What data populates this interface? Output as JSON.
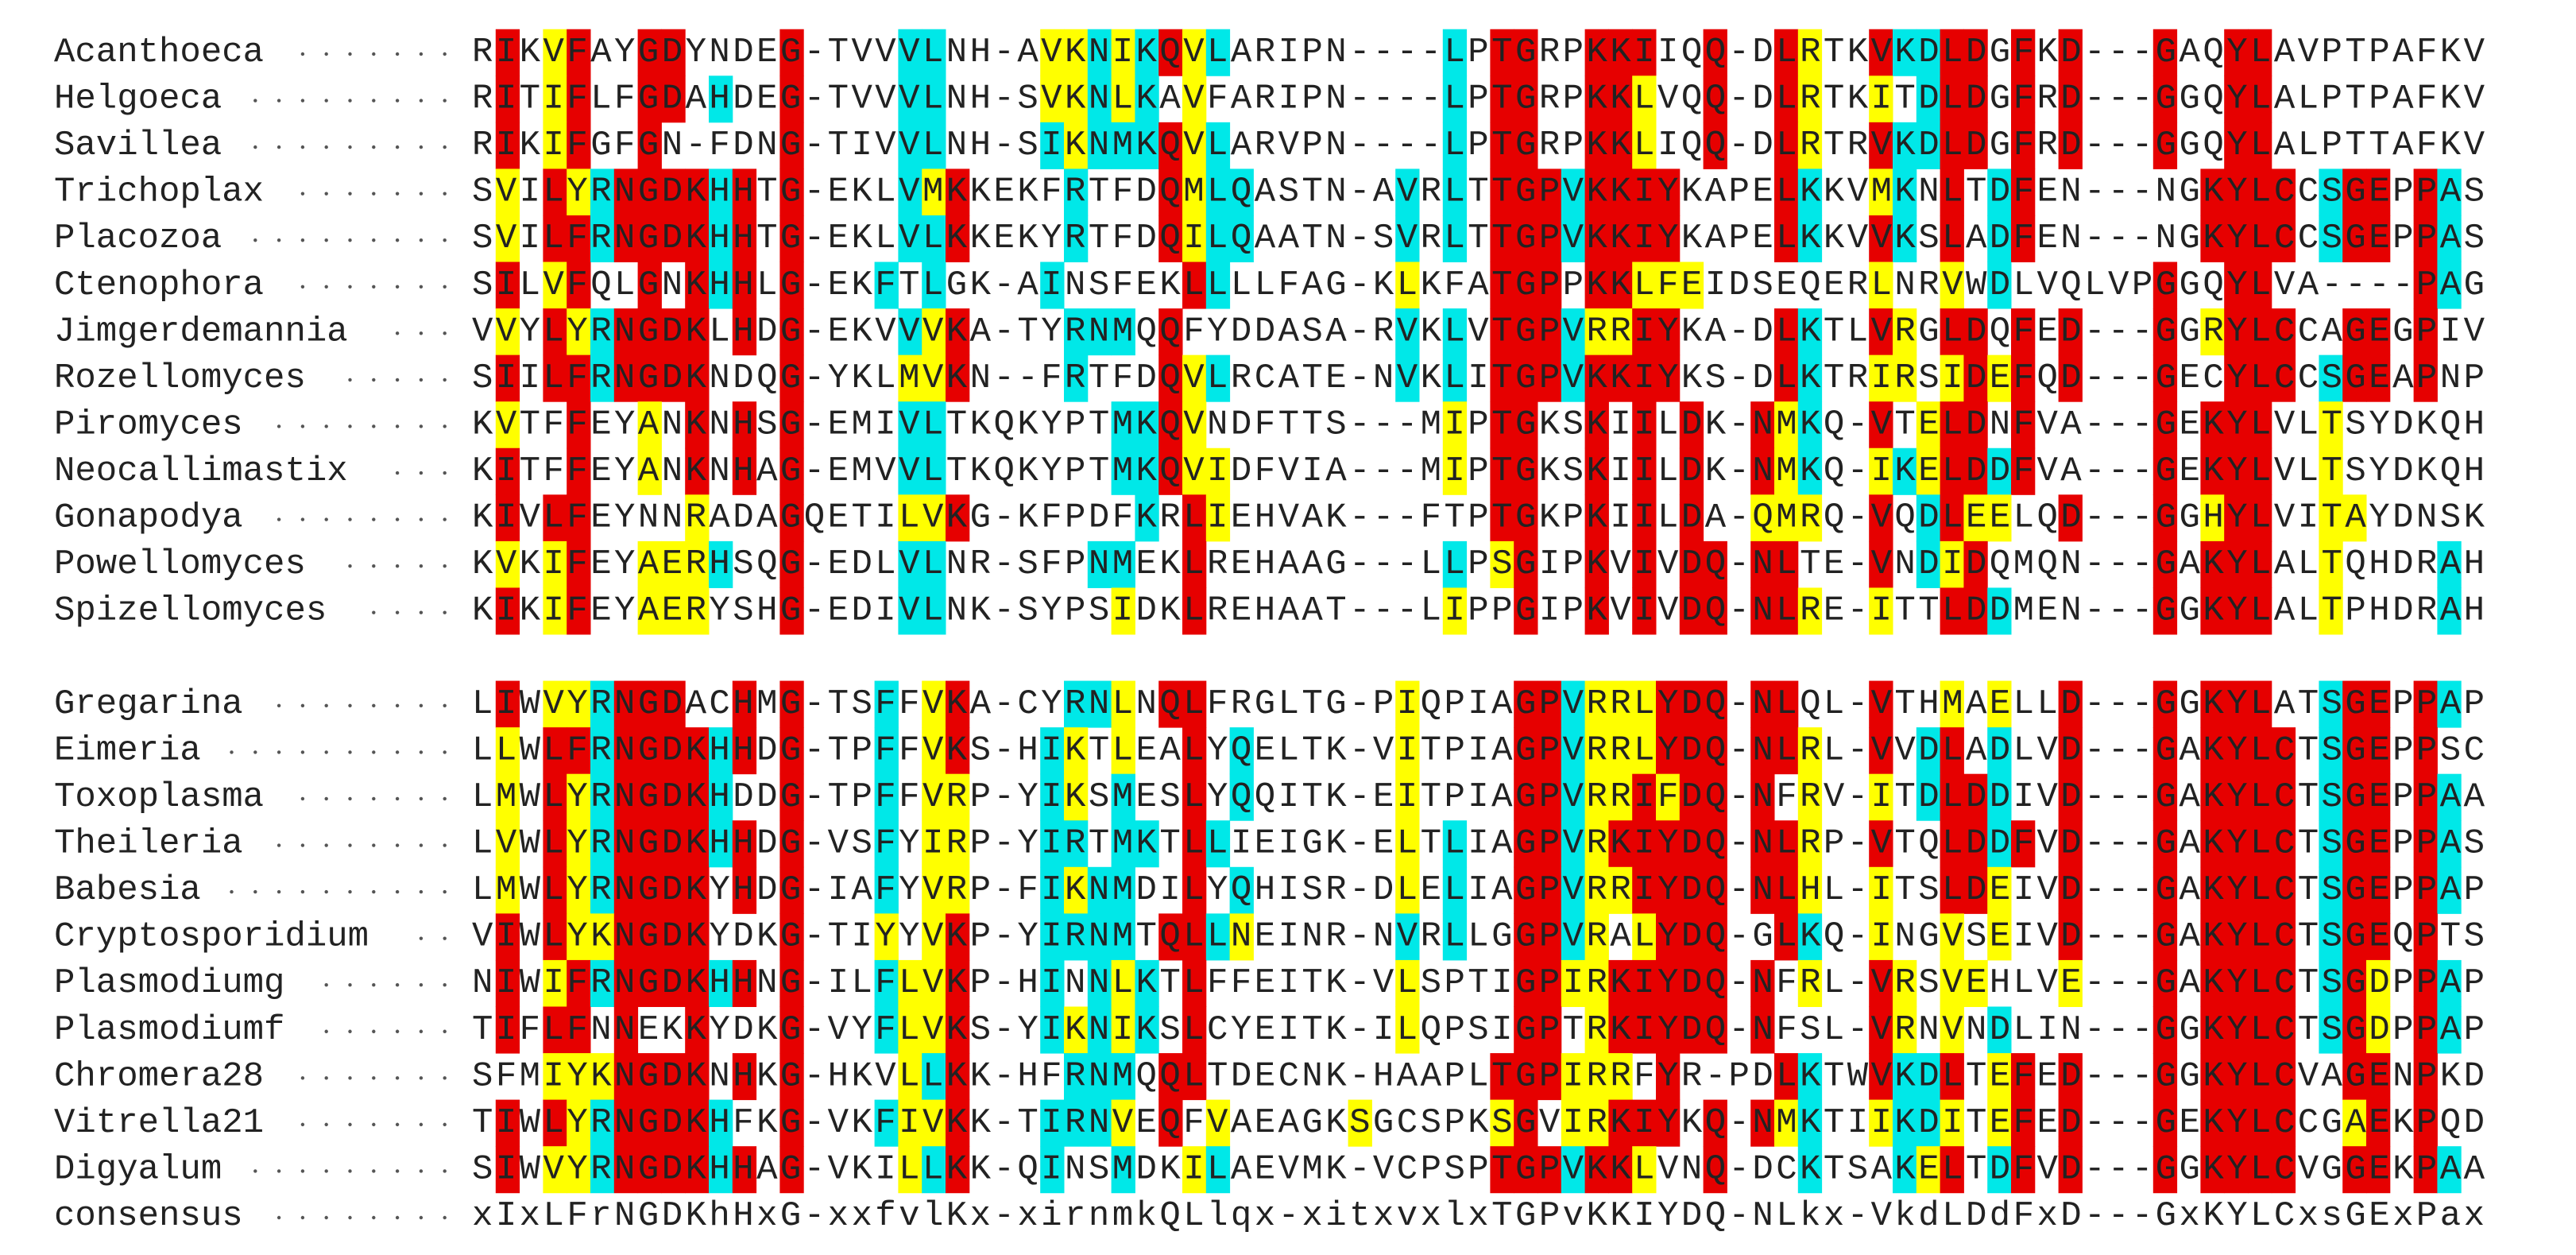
{
  "groups": [
    {
      "rows": [
        {
          "name": "Acanthoeca",
          "sequence": "RIKVFAYGDYNDEG-TVVVLNH-AVKNIKQVLARIPN----LPTGRPKKIIQQ-DLRTKVKDLDGFKD---GAQYLAVPTPAFKV"
        },
        {
          "name": "Helgoeca",
          "sequence": "RITIFLFGDAHDEG-TVVVLNH-SVKNLKAVFARIPN----LPTGRPKKLVQQ-DLRTKITDLDGFRD---GGQYLALPTPAFKV"
        },
        {
          "name": "Savillea",
          "sequence": "RIKIFGFGN-FDNG-TIVVLNH-SIKNMKQVLARVPN----LPTGRPKKLIQQ-DLRTRVKDLDGFRD---GGQYLALPTTAFKV"
        },
        {
          "name": "Trichoplax",
          "sequence": "SVILYRNGDKHHTG-EKLVMKKEKFRTFDQMLQASTN-AVRLTTGPVKKIYKAPELKKVMKNLTDFEN---NGKYLCCSGEPPAS"
        },
        {
          "name": "Placozoa",
          "sequence": "SVILFRNGDKHHTG-EKLVLKKEKYRTFDQILQAATN-SVRLTTGPVKKIYKAPELKKVVKSLADFEN---NGKYLCCSGEPPAS"
        },
        {
          "name": "Ctenophora",
          "sequence": "SILVFQLGNKHHLG-EKFTLGK-AINSFEKLLLLFAG-KLKFATGPPKKLFEIDSEQERLNRVWDLVQLVPGGQYLVA----PAG"
        },
        {
          "name": "Jimgerdemannia",
          "sequence": "VVYLYRNGDKLHDG-EKVVVKA-TYRNMQQFYDDASA-RVKLVTGPVRRIYKA-DLKTLVRGLDQFED---GGRYLCCAGEGPIV"
        },
        {
          "name": "Rozellomyces",
          "sequence": "SIILFRNGDKNDQG-YKLMVKN--FRTFDQVLRCATE-NVKLITGPVKKIYKS-DLKTRIRSIDEFQD---GECYLCCSGEAPNP"
        },
        {
          "name": "Piromyces",
          "sequence": "KVTFFEYANKNHSG-EMIVLTKQKYPTMKQVNDFTTS---MIPTGKSKIILDK-NMKQ-VTELDNFVA---GEKYLVLTSYDKQH"
        },
        {
          "name": "Neocallimastix",
          "sequence": "KITFFEYANKNHAG-EMVVLTKQKYPTMKQVIDFVIA---MIPTGKSKIILDK-NMKQ-IKELDDFVA---GEKYLVLTSYDKQH"
        },
        {
          "name": "Gonapodya",
          "sequence": "KIVLFEYNNRADAGQETILVKG-KFPDFKRLIEHVAK---FTPTGKPKIILDA-QMRQ-VQDLEELQD---GGHYLVITAYDNSK"
        },
        {
          "name": "Powellomyces",
          "sequence": "KVKIFEYAERHSQG-EDLVLNR-SFPNMEKLREHAAG---LLPSGIPKVIVDQ-NLTE-VNDIDQMQN---GAKYLALTQHDRAH"
        },
        {
          "name": "Spizellomyces",
          "sequence": "KIKIFEYAERYSHG-EDIVLNK-SYPSIDKLREHAAT---LIPPGIPKVIVDQ-NLRE-ITTLDDMEN---GGKYLALTPHDRAH"
        }
      ]
    },
    {
      "rows": [
        {
          "name": "Gregarina",
          "sequence": "LIWVYRNGDACHMG-TSFFVKA-CYRNLNQLFRGLTG-PIQPIAGPVRRLYDQ-NLQL-VTHMAELLD---GGKYLATSGEPPAP"
        },
        {
          "name": "Eimeria",
          "sequence": "LLWLFRNGDKHHDG-TPFFVKS-HIKTLEALYQELTK-VITPIAGPVRRLYDQ-NLRL-VVDLADLVD---GAKYLCTSGEPPSC"
        },
        {
          "name": "Toxoplasma",
          "sequence": "LMWLYRNGDKHDDG-TPFFVRP-YIKSMESLYQQITK-EITPIAGPVRRIFDQ-NFRV-ITDLDDIVD---GAKYLCTSGEPPAA"
        },
        {
          "name": "Theileria",
          "sequence": "LVWLYRNGDKHHDG-VSFYIRP-YIRTMKTLLIEIGK-ELTLIAGPVRKIYDQ-NLRP-VTQLDDFVD---GAKYLCTSGEPPAS"
        },
        {
          "name": "Babesia",
          "sequence": "LMWLYRNGDKYHDG-IAFYVRP-FIKNMDILYQHISR-DLELIAGPVRRIYDQ-NLHL-ITSLDEIVD---GAKYLCTSGEPPAP"
        },
        {
          "name": "Cryptosporidium",
          "sequence": "VIWLYKNGDKYDKG-TIYYVKP-YIRNMTQLLNEINR-NVRLLGGPVRALYDQ-GLKQ-INGVSEIVD---GAKYLCTSGEQPTS"
        },
        {
          "name": "Plasmodiumg",
          "sequence": "NIWIFRNGDKHHNG-ILFLVKP-HINNLKTLFFEITK-VLSPTIGPIRKIYDQ-NFRL-VRSVEHLVE---GAKYLCTSGDPPAP"
        },
        {
          "name": "Plasmodiumf",
          "sequence": "TIFLFNNEKKYDKG-VYFLVKS-YIKNIKSLCYEITK-ILQPSIGPTRKIYDQ-NFSL-VRNVNDLIN---GGKYLCTSGDPPAP"
        },
        {
          "name": "Chromera28",
          "sequence": "SFMIYKNGDKNHKG-HKVLLKK-HFRNMQQLTDECNK-HAAPLTGPIRRFYR-PDLKTWVKDLTEFED---GGKYLCVAGENPKD"
        },
        {
          "name": "Vitrella21",
          "sequence": "TIWLYRNGDKHFKG-VKFIVKK-TIRNVEQFVAEAGKSGCSPKSGVIRKIYKQ-NMKTIIKDITEFED---GEKYLCCGAEKPQD"
        },
        {
          "name": "Digyalum",
          "sequence": "SIWVYRNGDKHHAG-VKILLKK-QINSMDKILAEVMK-VCPSPTGPVKKLVNQ-DCKTSAKELTDFVD---GGKYLCVGGEKPAA"
        }
      ]
    }
  ],
  "consensus": {
    "name": "consensus",
    "sequence": "xIxLFrNGDKhHxG-xxfvlKx-xirnmkQLlqx-xitxvxlxTGPvKKIYDQ-NLkx-VkdLDdFxD---GxKYLCxsGExPax"
  }
}
